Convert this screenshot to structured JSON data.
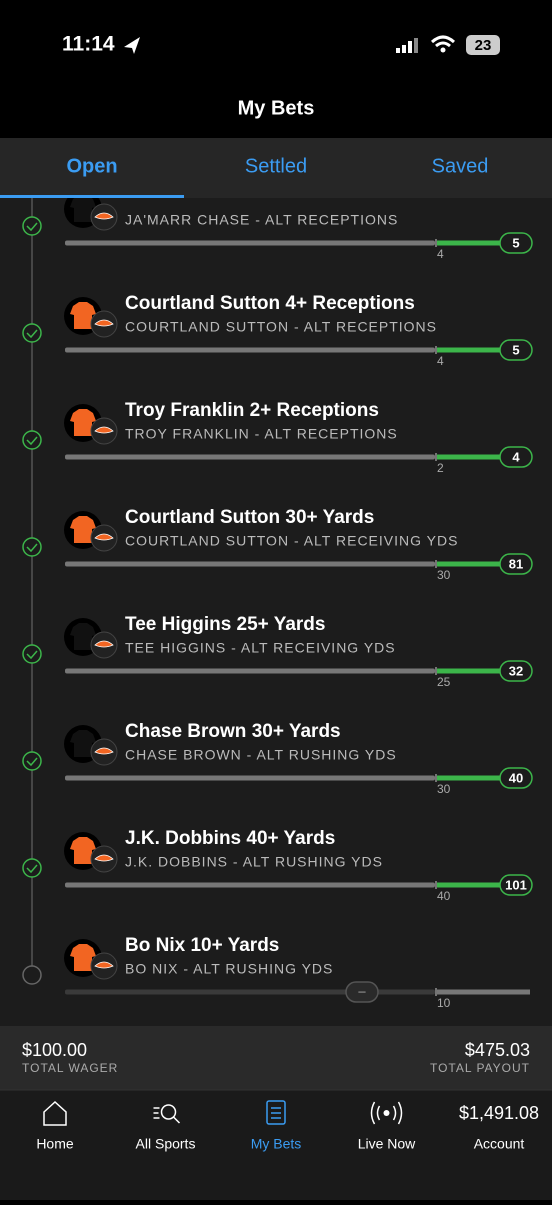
{
  "status_bar": {
    "time": "11:14",
    "battery": "23"
  },
  "header": {
    "title": "My Bets"
  },
  "tabs": [
    "Open",
    "Settled",
    "Saved"
  ],
  "legs": [
    {
      "title": null,
      "subtitle": "JA'MARR CHASE - ALT RECEPTIONS",
      "line": "4",
      "result": "5"
    },
    {
      "title": "Courtland Sutton 4+ Receptions",
      "subtitle": "COURTLAND SUTTON - ALT RECEPTIONS",
      "line": "4",
      "result": "5"
    },
    {
      "title": "Troy Franklin 2+ Receptions",
      "subtitle": "TROY FRANKLIN - ALT RECEPTIONS",
      "line": "2",
      "result": "4"
    },
    {
      "title": "Courtland Sutton 30+ Yards",
      "subtitle": "COURTLAND SUTTON - ALT RECEIVING YDS",
      "line": "30",
      "result": "81"
    },
    {
      "title": "Tee Higgins 25+ Yards",
      "subtitle": "TEE HIGGINS - ALT RECEIVING YDS",
      "line": "25",
      "result": "32"
    },
    {
      "title": "Chase Brown 30+ Yards",
      "subtitle": "CHASE BROWN - ALT RUSHING YDS",
      "line": "30",
      "result": "40"
    },
    {
      "title": "J.K. Dobbins 40+ Yards",
      "subtitle": "J.K. DOBBINS - ALT RUSHING YDS",
      "line": "40",
      "result": "101"
    },
    {
      "title": "Bo Nix 10+ Yards",
      "subtitle": "BO NIX - ALT RUSHING YDS",
      "line": "10",
      "result": "–"
    }
  ],
  "summary": {
    "wager": "$100.00",
    "wager_label": "TOTAL WAGER",
    "payout": "$475.03",
    "payout_label": "TOTAL PAYOUT"
  },
  "nav": [
    {
      "label": "Home"
    },
    {
      "label": "All Sports"
    },
    {
      "label": "My Bets"
    },
    {
      "label": "Live Now"
    },
    {
      "label": "Account",
      "amount": "$1,491.08"
    }
  ]
}
